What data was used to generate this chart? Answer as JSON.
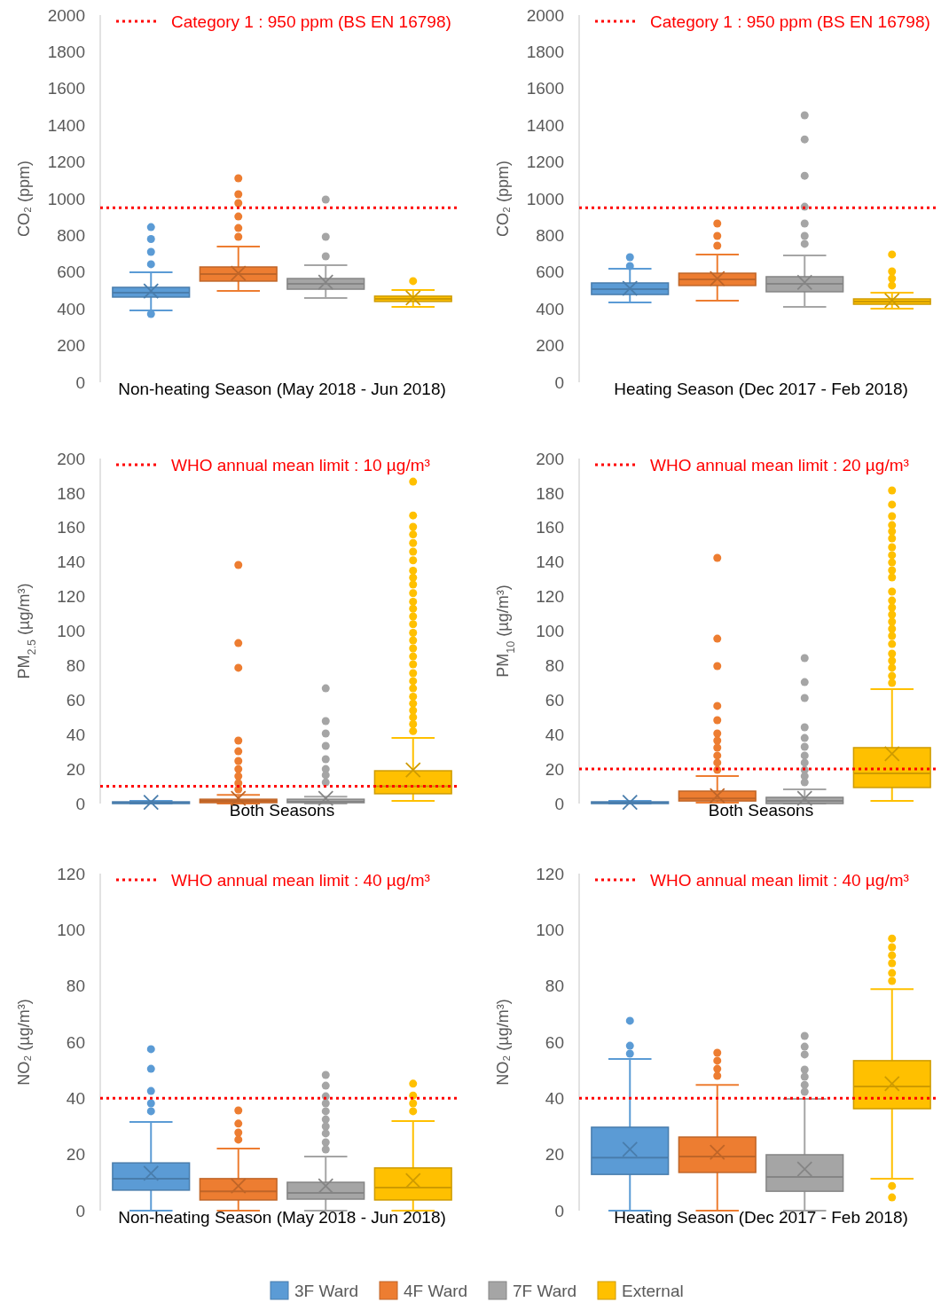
{
  "chart_data": [
    {
      "type": "box",
      "ylabel": "CO₂ (ppm)",
      "categories": [
        "Non-heating Season (May 2018 - Jun 2018)"
      ],
      "ylim": [
        0,
        2000
      ],
      "yticks": [
        0,
        200,
        400,
        600,
        800,
        1000,
        1200,
        1400,
        1600,
        1800,
        2000
      ],
      "legend": "top left",
      "ref_lines": [
        {
          "axis": "y",
          "value": 950,
          "label": "Category 1 : 950 ppm (BS EN 16798)",
          "color": "#ff0000",
          "line_style": "dotted"
        }
      ],
      "series": [
        {
          "color": "#5b9bd5",
          "boxes": [
            {
              "low": 391,
              "q1": 464,
              "median": 488,
              "q3": 517,
              "high": 599,
              "mean": 497,
              "outliers": [
                845,
                780,
                710,
                643,
                372
              ]
            }
          ]
        },
        {
          "color": "#ed7d31",
          "boxes": [
            {
              "low": 497,
              "q1": 551,
              "median": 589,
              "q3": 628,
              "high": 739,
              "mean": 594,
              "outliers": [
                1111,
                1024,
                976,
                903,
                840,
                792
              ]
            }
          ]
        },
        {
          "color": "#a5a5a5",
          "boxes": [
            {
              "low": 459,
              "q1": 507,
              "median": 536,
              "q3": 565,
              "high": 638,
              "mean": 545,
              "outliers": [
                995,
                792,
                686
              ]
            }
          ]
        },
        {
          "color": "#ffc000",
          "boxes": [
            {
              "low": 411,
              "q1": 440,
              "median": 454,
              "q3": 469,
              "high": 502,
              "mean": 460,
              "outliers": [
                551
              ]
            }
          ]
        }
      ]
    },
    {
      "type": "box",
      "ylabel": "CO₂ (ppm)",
      "categories": [
        "Heating Season (Dec 2017 - Feb 2018)"
      ],
      "ylim": [
        0,
        2000
      ],
      "yticks": [
        0,
        200,
        400,
        600,
        800,
        1000,
        1200,
        1400,
        1600,
        1800,
        2000
      ],
      "legend": "top left",
      "ref_lines": [
        {
          "axis": "y",
          "value": 950,
          "label": "Category 1 : 950 ppm (BS EN 16798)",
          "color": "#ff0000",
          "line_style": "dotted"
        }
      ],
      "series": [
        {
          "color": "#5b9bd5",
          "boxes": [
            {
              "low": 435,
              "q1": 478,
              "median": 507,
              "q3": 541,
              "high": 618,
              "mean": 512,
              "outliers": [
                681,
                633
              ]
            }
          ]
        },
        {
          "color": "#ed7d31",
          "boxes": [
            {
              "low": 444,
              "q1": 527,
              "median": 560,
              "q3": 594,
              "high": 696,
              "mean": 565,
              "outliers": [
                865,
                797,
                744
              ]
            }
          ]
        },
        {
          "color": "#a5a5a5",
          "boxes": [
            {
              "low": 411,
              "q1": 493,
              "median": 536,
              "q3": 575,
              "high": 691,
              "mean": 544,
              "outliers": [
                1454,
                1323,
                1125,
                956,
                865,
                797,
                754
              ]
            }
          ]
        },
        {
          "color": "#ffc000",
          "boxes": [
            {
              "low": 401,
              "q1": 425,
              "median": 440,
              "q3": 454,
              "high": 488,
              "mean": 445,
              "outliers": [
                696,
                604,
                565,
                527
              ]
            }
          ]
        }
      ]
    },
    {
      "type": "box",
      "ylabel": "PM$_{2.5}$ (µg/m³)",
      "categories": [
        "Both Seasons"
      ],
      "ylim": [
        0,
        200
      ],
      "yticks": [
        0,
        20,
        40,
        60,
        80,
        100,
        120,
        140,
        160,
        180,
        200
      ],
      "legend": "top left",
      "ref_lines": [
        {
          "axis": "y",
          "value": 10,
          "label": "WHO annual mean limit : 10 µg/m³",
          "color": "#ff0000",
          "line_style": "dotted"
        }
      ],
      "series": [
        {
          "color": "#5b9bd5",
          "boxes": [
            {
              "low": 0,
              "q1": 0,
              "median": 0.5,
              "q3": 1,
              "high": 1.5,
              "mean": 0.7
            }
          ]
        },
        {
          "color": "#ed7d31",
          "boxes": [
            {
              "low": 0,
              "q1": 0.5,
              "median": 1.5,
              "q3": 2.5,
              "high": 5,
              "mean": 3,
              "outliers": [
                138.3,
                93,
                78.7,
                36.5,
                30.3,
                24.7,
                20,
                15.9,
                11.8,
                8.2
              ]
            }
          ]
        },
        {
          "color": "#a5a5a5",
          "boxes": [
            {
              "low": 0,
              "q1": 0.5,
              "median": 1,
              "q3": 2.5,
              "high": 4,
              "mean": 3,
              "outliers": [
                66.8,
                47.8,
                40.6,
                33.4,
                25.7,
                20,
                16.5,
                12.3
              ]
            }
          ]
        },
        {
          "color": "#ffc000",
          "boxes": [
            {
              "low": 1.5,
              "q1": 5.7,
              "median": 10,
              "q3": 19,
              "high": 38,
              "mean": 19.5,
              "outliers": [
                186.6,
                167,
                160.4,
                156,
                151,
                146,
                141,
                135,
                131,
                127,
                122,
                117,
                113,
                108.5,
                104,
                99,
                94.6,
                90,
                85.3,
                80.7,
                75.6,
                71,
                66.8,
                62,
                58,
                54,
                50,
                46,
                42
              ]
            }
          ]
        }
      ]
    },
    {
      "type": "box",
      "ylabel": "PM$_{10}$ (µg/m³)",
      "categories": [
        "Both Seasons"
      ],
      "ylim": [
        0,
        200
      ],
      "yticks": [
        0,
        20,
        40,
        60,
        80,
        100,
        120,
        140,
        160,
        180,
        200
      ],
      "legend": "top left",
      "ref_lines": [
        {
          "axis": "y",
          "value": 20,
          "label": "WHO annual mean limit : 20 µg/m³",
          "color": "#ff0000",
          "line_style": "dotted"
        }
      ],
      "series": [
        {
          "color": "#5b9bd5",
          "boxes": [
            {
              "low": 0,
              "q1": 0,
              "median": 0.5,
              "q3": 1,
              "high": 1.5,
              "mean": 0.7
            }
          ]
        },
        {
          "color": "#ed7d31",
          "boxes": [
            {
              "low": 0.5,
              "q1": 1.5,
              "median": 3,
              "q3": 7.2,
              "high": 16,
              "mean": 4.6,
              "outliers": [
                142.4,
                95.6,
                79.7,
                56.6,
                48.3,
                40.6,
                36.5,
                32.4,
                27.8,
                23.7,
                19.5
              ]
            }
          ]
        },
        {
          "color": "#a5a5a5",
          "boxes": [
            {
              "low": 0,
              "q1": 0,
              "median": 1.5,
              "q3": 3.6,
              "high": 8.2,
              "mean": 3,
              "outliers": [
                84.3,
                70.4,
                61.2,
                44.2,
                38,
                32.9,
                27.8,
                23.7,
                19.5,
                15.9,
                12.3
              ]
            }
          ]
        },
        {
          "color": "#ffc000",
          "boxes": [
            {
              "low": 1.5,
              "q1": 9.3,
              "median": 17.5,
              "q3": 32.4,
              "high": 66.3,
              "mean": 28.8,
              "outliers": [
                181.5,
                173.3,
                166.6,
                161.4,
                157.8,
                153.7,
                148.6,
                144,
                139.8,
                135.2,
                131.1,
                122.9,
                117.7,
                113.6,
                109.5,
                105.4,
                101.3,
                97.2,
                92.5,
                86.9,
                82.8,
                78.7,
                74,
                69.9
              ]
            }
          ]
        }
      ]
    },
    {
      "type": "box",
      "ylabel": "NO₂ (µg/m³)",
      "categories": [
        "Non-heating Season (May 2018 - Jun 2018)"
      ],
      "ylim": [
        0,
        120
      ],
      "yticks": [
        0,
        20,
        40,
        60,
        80,
        100,
        120
      ],
      "legend": "top left",
      "ref_lines": [
        {
          "axis": "y",
          "value": 40,
          "label": "WHO annual mean limit : 40 µg/m³",
          "color": "#ff0000",
          "line_style": "dotted"
        }
      ],
      "series": [
        {
          "color": "#5b9bd5",
          "boxes": [
            {
              "low": 0,
              "q1": 7.3,
              "median": 11.4,
              "q3": 17,
              "high": 31.6,
              "mean": 13.3,
              "outliers": [
                57.5,
                50.5,
                42.6,
                38.2,
                35.4
              ]
            }
          ]
        },
        {
          "color": "#ed7d31",
          "boxes": [
            {
              "low": 0,
              "q1": 3.8,
              "median": 6.9,
              "q3": 11.4,
              "high": 22.1,
              "mean": 8.8,
              "outliers": [
                35.7,
                31,
                27.8,
                25.3
              ]
            }
          ]
        },
        {
          "color": "#a5a5a5",
          "boxes": [
            {
              "low": 0,
              "q1": 4.1,
              "median": 6.3,
              "q3": 10.1,
              "high": 19.3,
              "mean": 8.8,
              "outliers": [
                48.3,
                44.5,
                40.7,
                38.2,
                35.4,
                32.5,
                30,
                27.5,
                24.3,
                21.8
              ]
            }
          ]
        },
        {
          "color": "#ffc000",
          "boxes": [
            {
              "low": 0,
              "q1": 3.8,
              "median": 8.2,
              "q3": 15.2,
              "high": 31.9,
              "mean": 10.7,
              "outliers": [
                45.2,
                41,
                38.2,
                35.4
              ]
            }
          ]
        }
      ]
    },
    {
      "type": "box",
      "ylabel": "NO₂ (µg/m³)",
      "categories": [
        "Heating Season (Dec 2017 - Feb 2018)"
      ],
      "ylim": [
        0,
        120
      ],
      "yticks": [
        0,
        20,
        40,
        60,
        80,
        100,
        120
      ],
      "legend": "bottom",
      "ref_lines": [
        {
          "axis": "y",
          "value": 40,
          "label": "WHO annual mean limit : 40 µg/m³",
          "color": "#ff0000",
          "line_style": "dotted"
        }
      ],
      "series": [
        {
          "name": "3F Ward",
          "color": "#5b9bd5",
          "boxes": [
            {
              "low": 0,
              "q1": 12.9,
              "median": 18.9,
              "q3": 29.7,
              "high": 54,
              "mean": 21.8,
              "outliers": [
                67.6,
                58.7,
                55.9
              ]
            }
          ]
        },
        {
          "name": "4F Ward",
          "color": "#ed7d31",
          "boxes": [
            {
              "low": 0,
              "q1": 13.6,
              "median": 19.3,
              "q3": 26.2,
              "high": 44.8,
              "mean": 20.8,
              "outliers": [
                56.2,
                53.4,
                50.5,
                48
              ]
            }
          ]
        },
        {
          "name": "7F Ward",
          "color": "#a5a5a5",
          "boxes": [
            {
              "low": 0,
              "q1": 6.9,
              "median": 12,
              "q3": 19.9,
              "high": 39.8,
              "mean": 14.8,
              "outliers": [
                62.2,
                58.4,
                55.6,
                50.2,
                47.7,
                44.8,
                42.3
              ]
            }
          ]
        },
        {
          "name": "External",
          "color": "#ffc000",
          "boxes": [
            {
              "low": 11.4,
              "q1": 36.3,
              "median": 44.2,
              "q3": 53.4,
              "high": 78.9,
              "mean": 45.2,
              "outliers": [
                96.9,
                93.8,
                90.9,
                88.1,
                84.6,
                81.8,
                8.8,
                4.7
              ]
            }
          ]
        }
      ]
    }
  ]
}
